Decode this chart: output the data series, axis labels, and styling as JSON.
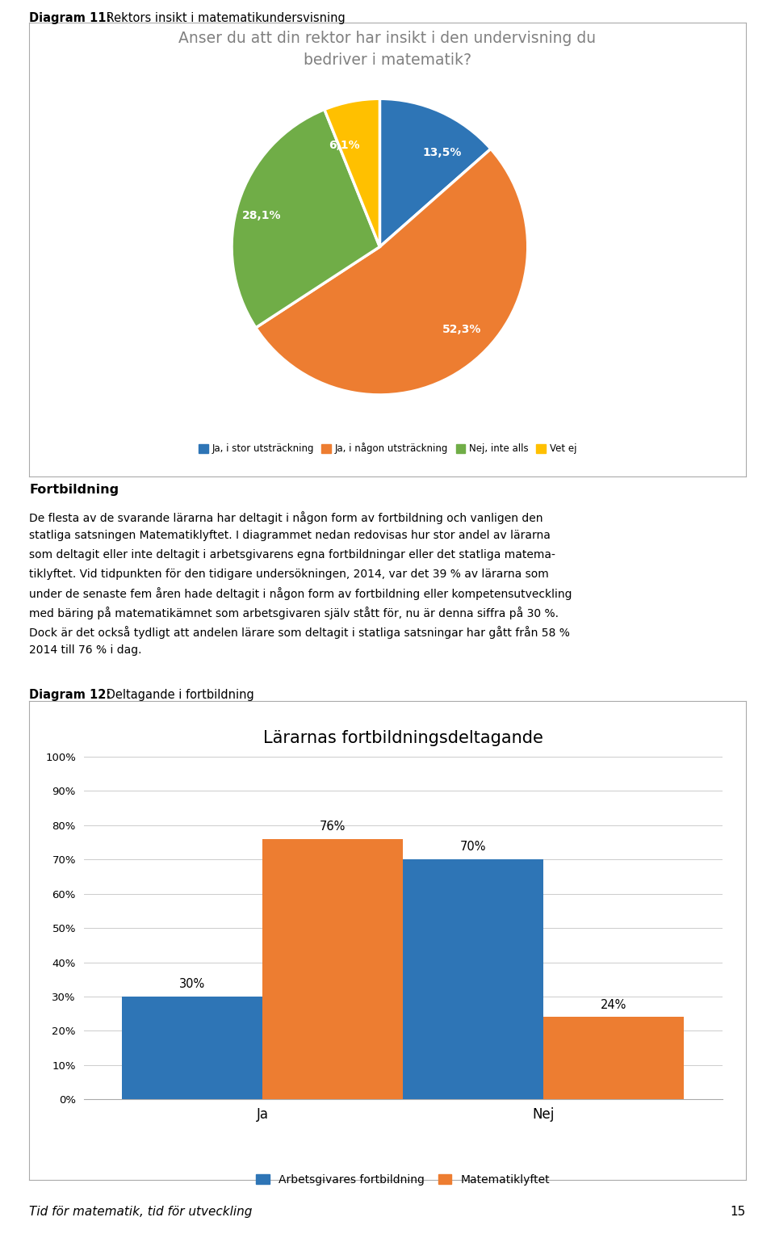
{
  "diagram_label_1": "Diagram 11:",
  "diagram_title_1": " Rektors insikt i matematikundersvisning",
  "pie_title": "Anser du att din rektor har insikt i den undervisning du\nbedriver i matematik?",
  "pie_values": [
    13.5,
    52.3,
    28.1,
    6.1
  ],
  "pie_labels": [
    "13,5%",
    "52,3%",
    "28,1%",
    "6,1%"
  ],
  "pie_colors": [
    "#2E75B6",
    "#ED7D31",
    "#70AD47",
    "#FFC000"
  ],
  "pie_legend_labels": [
    "Ja, i stor utsträckning",
    "Ja, i någon utsträckning",
    "Nej, inte alls",
    "Vet ej"
  ],
  "body_title": "Fortbildning",
  "body_lines": [
    "De flesta av de svarande lärarna har deltagit i någon form av fortbildning och vanligen den",
    "statliga satsningen Matematiklyftet. I diagrammet nedan redovisas hur stor andel av lärarna",
    "som deltagit eller inte deltagit i arbetsgivarens egna fortbildningar eller det statliga matema-",
    "tiklyftet. Vid tidpunkten för den tidigare undersökningen, 2014, var det 39 % av lärarna som",
    "under de senaste fem åren hade deltagit i någon form av fortbildning eller kompetensutveckling",
    "med bäring på matematikämnet som arbetsgivaren själv stått för, nu är denna siffra på 30 %.",
    "Dock är det också tydligt att andelen lärare som deltagit i statliga satsningar har gått från 58 %",
    "2014 till 76 % i dag."
  ],
  "diagram_label_2": "Diagram 12:",
  "diagram_title_2": " Deltagande i fortbildning",
  "bar_chart_title": "Lärarnas fortbildningsdeltagande",
  "bar_groups": [
    "Ja",
    "Nej"
  ],
  "bar_series_1_values": [
    30,
    70
  ],
  "bar_series_2_values": [
    76,
    24
  ],
  "bar_series_1_label": "Arbetsgivares fortbildning",
  "bar_series_2_label": "Matematiklyftet",
  "bar_series_1_color": "#2E75B6",
  "bar_series_2_color": "#ED7D31",
  "footer_text_italic": "Tid för matematik, tid för utveckling",
  "footer_page_number": "15",
  "background_color": "#FFFFFF",
  "box_border_color": "#AAAAAA",
  "text_color": "#000000",
  "pie_title_color": "#808080"
}
